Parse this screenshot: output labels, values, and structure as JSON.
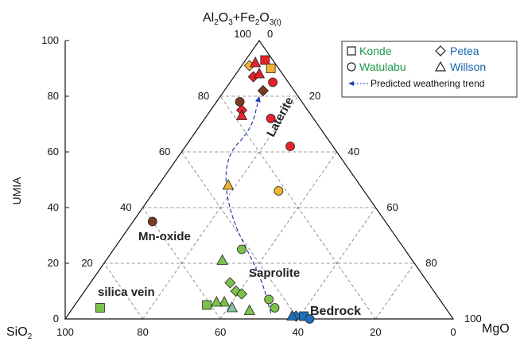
{
  "chart_data": {
    "type": "scatter",
    "subtype": "ternary",
    "vertices": {
      "top_parts": [
        "Al",
        "2",
        "O",
        "3",
        "+Fe",
        "2",
        "O",
        "3(t)"
      ],
      "left": "SiO",
      "left_sub": "2",
      "right": "MgO"
    },
    "ylabel": "UMIA",
    "left_axis_ticks": [
      "0",
      "20",
      "40",
      "60",
      "80",
      "100"
    ],
    "bottom_ticks": [
      "100",
      "80",
      "60",
      "40",
      "20",
      "0"
    ],
    "inner_left_ticks": [
      "20",
      "40",
      "60",
      "80"
    ],
    "inner_right_ticks": [
      "20",
      "40",
      "60",
      "80",
      "100"
    ],
    "apex_ticks": [
      "100",
      "0"
    ],
    "grid": true,
    "legend": {
      "position": "top-right",
      "entries": [
        {
          "marker": "square",
          "label": "Konde",
          "color": "#1a9a46"
        },
        {
          "marker": "diamond",
          "label": "Petea",
          "color": "#1565b0"
        },
        {
          "marker": "circle",
          "label": "Watulabu",
          "color": "#1a9a46"
        },
        {
          "marker": "triangle",
          "label": "Willson",
          "color": "#1565b0"
        }
      ],
      "trend_label": "Predicted weathering trend"
    },
    "regions": [
      "Laterite",
      "Mn-oxide",
      "Saprolite",
      "silica vein",
      "Bedrock"
    ],
    "colors": {
      "red": "#e8202a",
      "yellow": "#f3b233",
      "brown": "#7a3b1e",
      "green": "#7cc24a",
      "teal": "#7ec3a4",
      "blue": "#1d6fb8",
      "trend": "#1f3fb0"
    },
    "points": [
      {
        "name": "Konde",
        "marker": "square",
        "color": "red",
        "sio2": 2,
        "umia": 93
      },
      {
        "name": "Konde",
        "marker": "square",
        "color": "yellow",
        "sio2": 2,
        "umia": 90
      },
      {
        "name": "Petea",
        "marker": "diamond",
        "color": "yellow",
        "sio2": 7,
        "umia": 91
      },
      {
        "name": "Petea",
        "marker": "diamond",
        "color": "red",
        "sio2": 8,
        "umia": 87
      },
      {
        "name": "Petea",
        "marker": "diamond",
        "color": "brown",
        "sio2": 8,
        "umia": 82
      },
      {
        "name": "Willson",
        "marker": "triangle",
        "color": "red",
        "sio2": 5,
        "umia": 92
      },
      {
        "name": "Willson",
        "marker": "triangle",
        "color": "red",
        "sio2": 6,
        "umia": 88
      },
      {
        "name": "Watulabu",
        "marker": "circle",
        "color": "red",
        "sio2": 4,
        "umia": 85
      },
      {
        "name": "Watulabu",
        "marker": "circle",
        "color": "brown",
        "sio2": 16,
        "umia": 78
      },
      {
        "name": "Petea",
        "marker": "diamond",
        "color": "red",
        "sio2": 17,
        "umia": 75
      },
      {
        "name": "Willson",
        "marker": "triangle",
        "color": "red",
        "sio2": 18,
        "umia": 73
      },
      {
        "name": "Watulabu",
        "marker": "circle",
        "color": "red",
        "sio2": 11,
        "umia": 72
      },
      {
        "name": "Watulabu",
        "marker": "circle",
        "color": "red",
        "sio2": 11,
        "umia": 62
      },
      {
        "name": "Willson",
        "marker": "triangle",
        "color": "yellow",
        "sio2": 34,
        "umia": 48
      },
      {
        "name": "Watulabu",
        "marker": "circle",
        "color": "yellow",
        "sio2": 22,
        "umia": 46
      },
      {
        "name": "Watulabu",
        "marker": "circle",
        "color": "brown",
        "sio2": 60,
        "umia": 35
      },
      {
        "name": "Watulabu",
        "marker": "circle",
        "color": "green",
        "sio2": 42,
        "umia": 25
      },
      {
        "name": "Willson",
        "marker": "triangle",
        "color": "green",
        "sio2": 49,
        "umia": 21
      },
      {
        "name": "Petea",
        "marker": "diamond",
        "color": "green",
        "sio2": 51,
        "umia": 13
      },
      {
        "name": "Petea",
        "marker": "diamond",
        "color": "green",
        "sio2": 51,
        "umia": 10
      },
      {
        "name": "Petea",
        "marker": "diamond",
        "color": "green",
        "sio2": 50,
        "umia": 9
      },
      {
        "name": "Willson",
        "marker": "triangle",
        "color": "teal",
        "sio2": 55,
        "umia": 4
      },
      {
        "name": "Willson",
        "marker": "triangle",
        "color": "green",
        "sio2": 56,
        "umia": 6
      },
      {
        "name": "Willson",
        "marker": "triangle",
        "color": "green",
        "sio2": 58,
        "umia": 6
      },
      {
        "name": "Willson",
        "marker": "triangle",
        "color": "green",
        "sio2": 51,
        "umia": 3
      },
      {
        "name": "Konde",
        "marker": "square",
        "color": "green",
        "sio2": 61,
        "umia": 5
      },
      {
        "name": "Watulabu",
        "marker": "circle",
        "color": "green",
        "sio2": 44,
        "umia": 7
      },
      {
        "name": "Watulabu",
        "marker": "circle",
        "color": "green",
        "sio2": 44,
        "umia": 4
      },
      {
        "name": "Konde",
        "marker": "square",
        "color": "green",
        "sio2": 89,
        "umia": 4
      },
      {
        "name": "Petea",
        "marker": "diamond",
        "color": "blue",
        "sio2": 40,
        "umia": 1
      },
      {
        "name": "Willson",
        "marker": "triangle",
        "color": "blue",
        "sio2": 41,
        "umia": 1
      },
      {
        "name": "Konde",
        "marker": "square",
        "color": "blue",
        "sio2": 38,
        "umia": 1
      },
      {
        "name": "Watulabu",
        "marker": "circle",
        "color": "blue",
        "sio2": 37,
        "umia": 0
      }
    ],
    "trend_path": [
      {
        "sio2": 46,
        "umia": 2
      },
      {
        "sio2": 42,
        "umia": 15
      },
      {
        "sio2": 39,
        "umia": 38
      },
      {
        "sio2": 30,
        "umia": 58
      },
      {
        "sio2": 18,
        "umia": 68
      },
      {
        "sio2": 10,
        "umia": 80
      }
    ]
  }
}
